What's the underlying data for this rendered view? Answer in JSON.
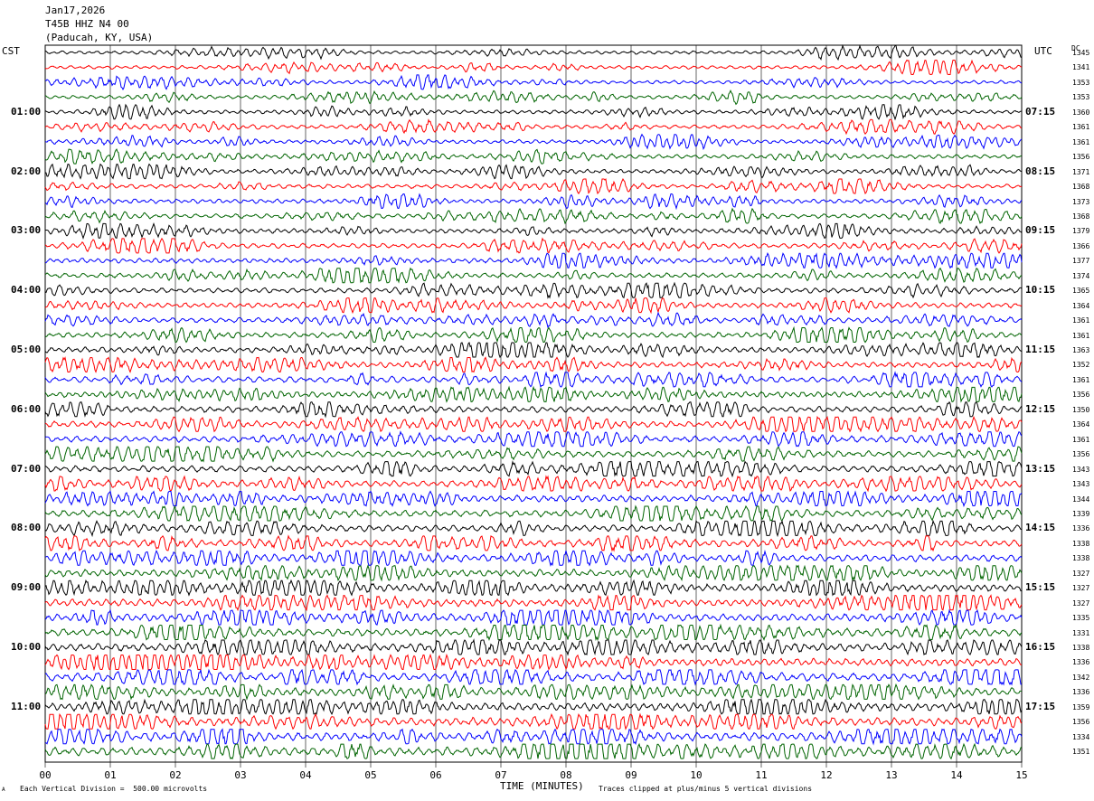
{
  "header": {
    "date": "Jan17,2026",
    "station": "T45B HHZ N4 00",
    "location": "(Paducah, KY, USA)"
  },
  "axis": {
    "left_label": "CST",
    "right_label": "UTC",
    "dc_label": "DC",
    "xlabel": "TIME (MINUTES)",
    "footer_left": "Each Vertical Division =  500.00 microvolts",
    "footer_right": "Traces clipped at plus/minus 5 vertical divisions",
    "corner_mark": "A"
  },
  "colors": {
    "black": "#000000",
    "red": "#ff0000",
    "blue": "#0000ff",
    "green": "#006400",
    "grid": "#000000"
  },
  "chart_data": {
    "type": "line",
    "title": "",
    "x_ticks": [
      "00",
      "01",
      "02",
      "03",
      "04",
      "05",
      "06",
      "07",
      "08",
      "09",
      "10",
      "11",
      "12",
      "13",
      "14",
      "15"
    ],
    "xlim": [
      0,
      15
    ],
    "trace_color_cycle": [
      "black",
      "red",
      "blue",
      "green"
    ],
    "cst_labels": [
      "01:00",
      "02:00",
      "03:00",
      "04:00",
      "05:00",
      "06:00",
      "07:00",
      "08:00",
      "09:00",
      "10:00",
      "11:00"
    ],
    "utc_labels": [
      "07:15",
      "08:15",
      "09:15",
      "10:15",
      "11:15",
      "12:15",
      "13:15",
      "14:15",
      "15:15",
      "16:15",
      "17:15"
    ],
    "label_every_n_traces": 4,
    "first_label_trace": 4,
    "dc_values": [
      1345,
      1341,
      1353,
      1353,
      1360,
      1361,
      1361,
      1356,
      1371,
      1368,
      1373,
      1368,
      1379,
      1366,
      1377,
      1374,
      1365,
      1364,
      1361,
      1361,
      1363,
      1352,
      1361,
      1356,
      1350,
      1364,
      1361,
      1356,
      1343,
      1343,
      1344,
      1339,
      1336,
      1338,
      1338,
      1327,
      1327,
      1327,
      1335,
      1331,
      1338,
      1336,
      1342,
      1336,
      1359,
      1356,
      1334,
      1351
    ]
  }
}
